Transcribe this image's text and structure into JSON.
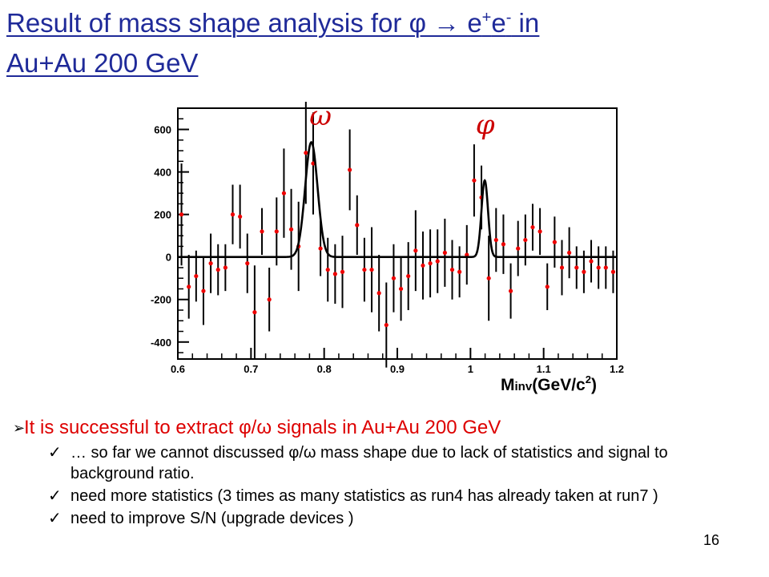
{
  "title": {
    "prefix": "Result of mass shape analysis for ",
    "phi_symbol": "φ",
    "arrow": " → ",
    "e_plus": "e",
    "plus_sup": "+",
    "e_minus": "e",
    "minus_sup": "-",
    "suffix_line1": " in",
    "line2": "Au+Au 200 GeV"
  },
  "chart_data": {
    "type": "scatter",
    "xlabel": "M_inv(GeV/c²)",
    "xlabel_main": "M",
    "xlabel_sub": "inv",
    "xlabel_rest": "(GeV/c",
    "xlabel_sup": "2",
    "xlabel_end": ")",
    "xlim": [
      0.6,
      1.2
    ],
    "ylim": [
      -480,
      700
    ],
    "x_ticks": [
      "0.6",
      "0.7",
      "0.8",
      "0.9",
      "1",
      "1.1",
      "1.2"
    ],
    "x_tick_values": [
      0.6,
      0.7,
      0.8,
      0.9,
      1.0,
      1.1,
      1.2
    ],
    "y_ticks": [
      "600",
      "400",
      "200",
      "0",
      "-200",
      "-400"
    ],
    "y_tick_values": [
      600,
      400,
      200,
      0,
      -200,
      -400
    ],
    "peak_labels": [
      {
        "text": "ω",
        "x": 0.795,
        "y": 620
      },
      {
        "text": "φ",
        "x": 1.02,
        "y": 580
      }
    ],
    "series": [
      {
        "x": [
          0.605,
          0.615,
          0.625,
          0.635,
          0.645,
          0.655,
          0.665,
          0.675,
          0.685,
          0.695,
          0.705,
          0.715,
          0.725,
          0.735,
          0.745,
          0.755,
          0.765,
          0.775,
          0.785,
          0.795,
          0.805,
          0.815,
          0.825,
          0.835,
          0.845,
          0.855,
          0.865,
          0.875,
          0.885,
          0.895,
          0.905,
          0.915,
          0.925,
          0.935,
          0.945,
          0.955,
          0.965,
          0.975,
          0.985,
          0.995,
          1.005,
          1.015,
          1.025,
          1.035,
          1.045,
          1.055,
          1.065,
          1.075,
          1.085,
          1.095,
          1.105,
          1.115,
          1.125,
          1.135,
          1.145,
          1.155,
          1.165,
          1.175,
          1.185,
          1.195
        ],
        "y": [
          200,
          -140,
          -90,
          -160,
          -30,
          -60,
          -50,
          200,
          190,
          -30,
          -260,
          120,
          -200,
          120,
          300,
          130,
          50,
          490,
          440,
          40,
          -60,
          -80,
          -70,
          410,
          150,
          -60,
          -60,
          -170,
          -320,
          -100,
          -150,
          -90,
          30,
          -40,
          -30,
          -20,
          20,
          -60,
          -70,
          10,
          360,
          280,
          -100,
          80,
          60,
          -160,
          40,
          80,
          140,
          120,
          -140,
          70,
          -50,
          20,
          -50,
          -70,
          -20,
          -50,
          -50,
          -70
        ],
        "err": [
          240,
          150,
          120,
          160,
          140,
          120,
          110,
          140,
          150,
          140,
          220,
          110,
          150,
          160,
          210,
          190,
          210,
          240,
          240,
          130,
          150,
          140,
          170,
          190,
          140,
          150,
          200,
          180,
          200,
          160,
          150,
          160,
          190,
          160,
          160,
          150,
          160,
          140,
          120,
          140,
          170,
          150,
          200,
          150,
          140,
          130,
          130,
          120,
          110,
          110,
          110,
          120,
          130,
          120,
          100,
          100,
          100,
          100,
          100,
          100
        ]
      }
    ],
    "fit_curve": {
      "baseline": 0,
      "peaks": [
        {
          "center": 0.7825,
          "height": 540,
          "width": 0.0085
        },
        {
          "center": 1.0195,
          "height": 360,
          "width": 0.0045
        }
      ]
    }
  },
  "bullets": {
    "main_prefix": "It is successful to extract ",
    "main_symbols": "φ/ω",
    "main_suffix": " signals in Au+Au 200 GeV",
    "check_symbol": "✓",
    "arrow_symbol": "➢",
    "sub1_prefix": "… so far we cannot discussed ",
    "sub1_symbols": "φ/ω",
    "sub1_suffix": " mass shape due to lack of statistics and signal to background ratio.",
    "sub2": " need  more statistics (3 times as many statistics as run4 has already taken at run7 )",
    "sub3": " need to improve S/N (upgrade devices )"
  },
  "page_number": "16",
  "colors": {
    "title": "#1f2a99",
    "highlight": "#dd0000",
    "points": "#ee0000"
  }
}
